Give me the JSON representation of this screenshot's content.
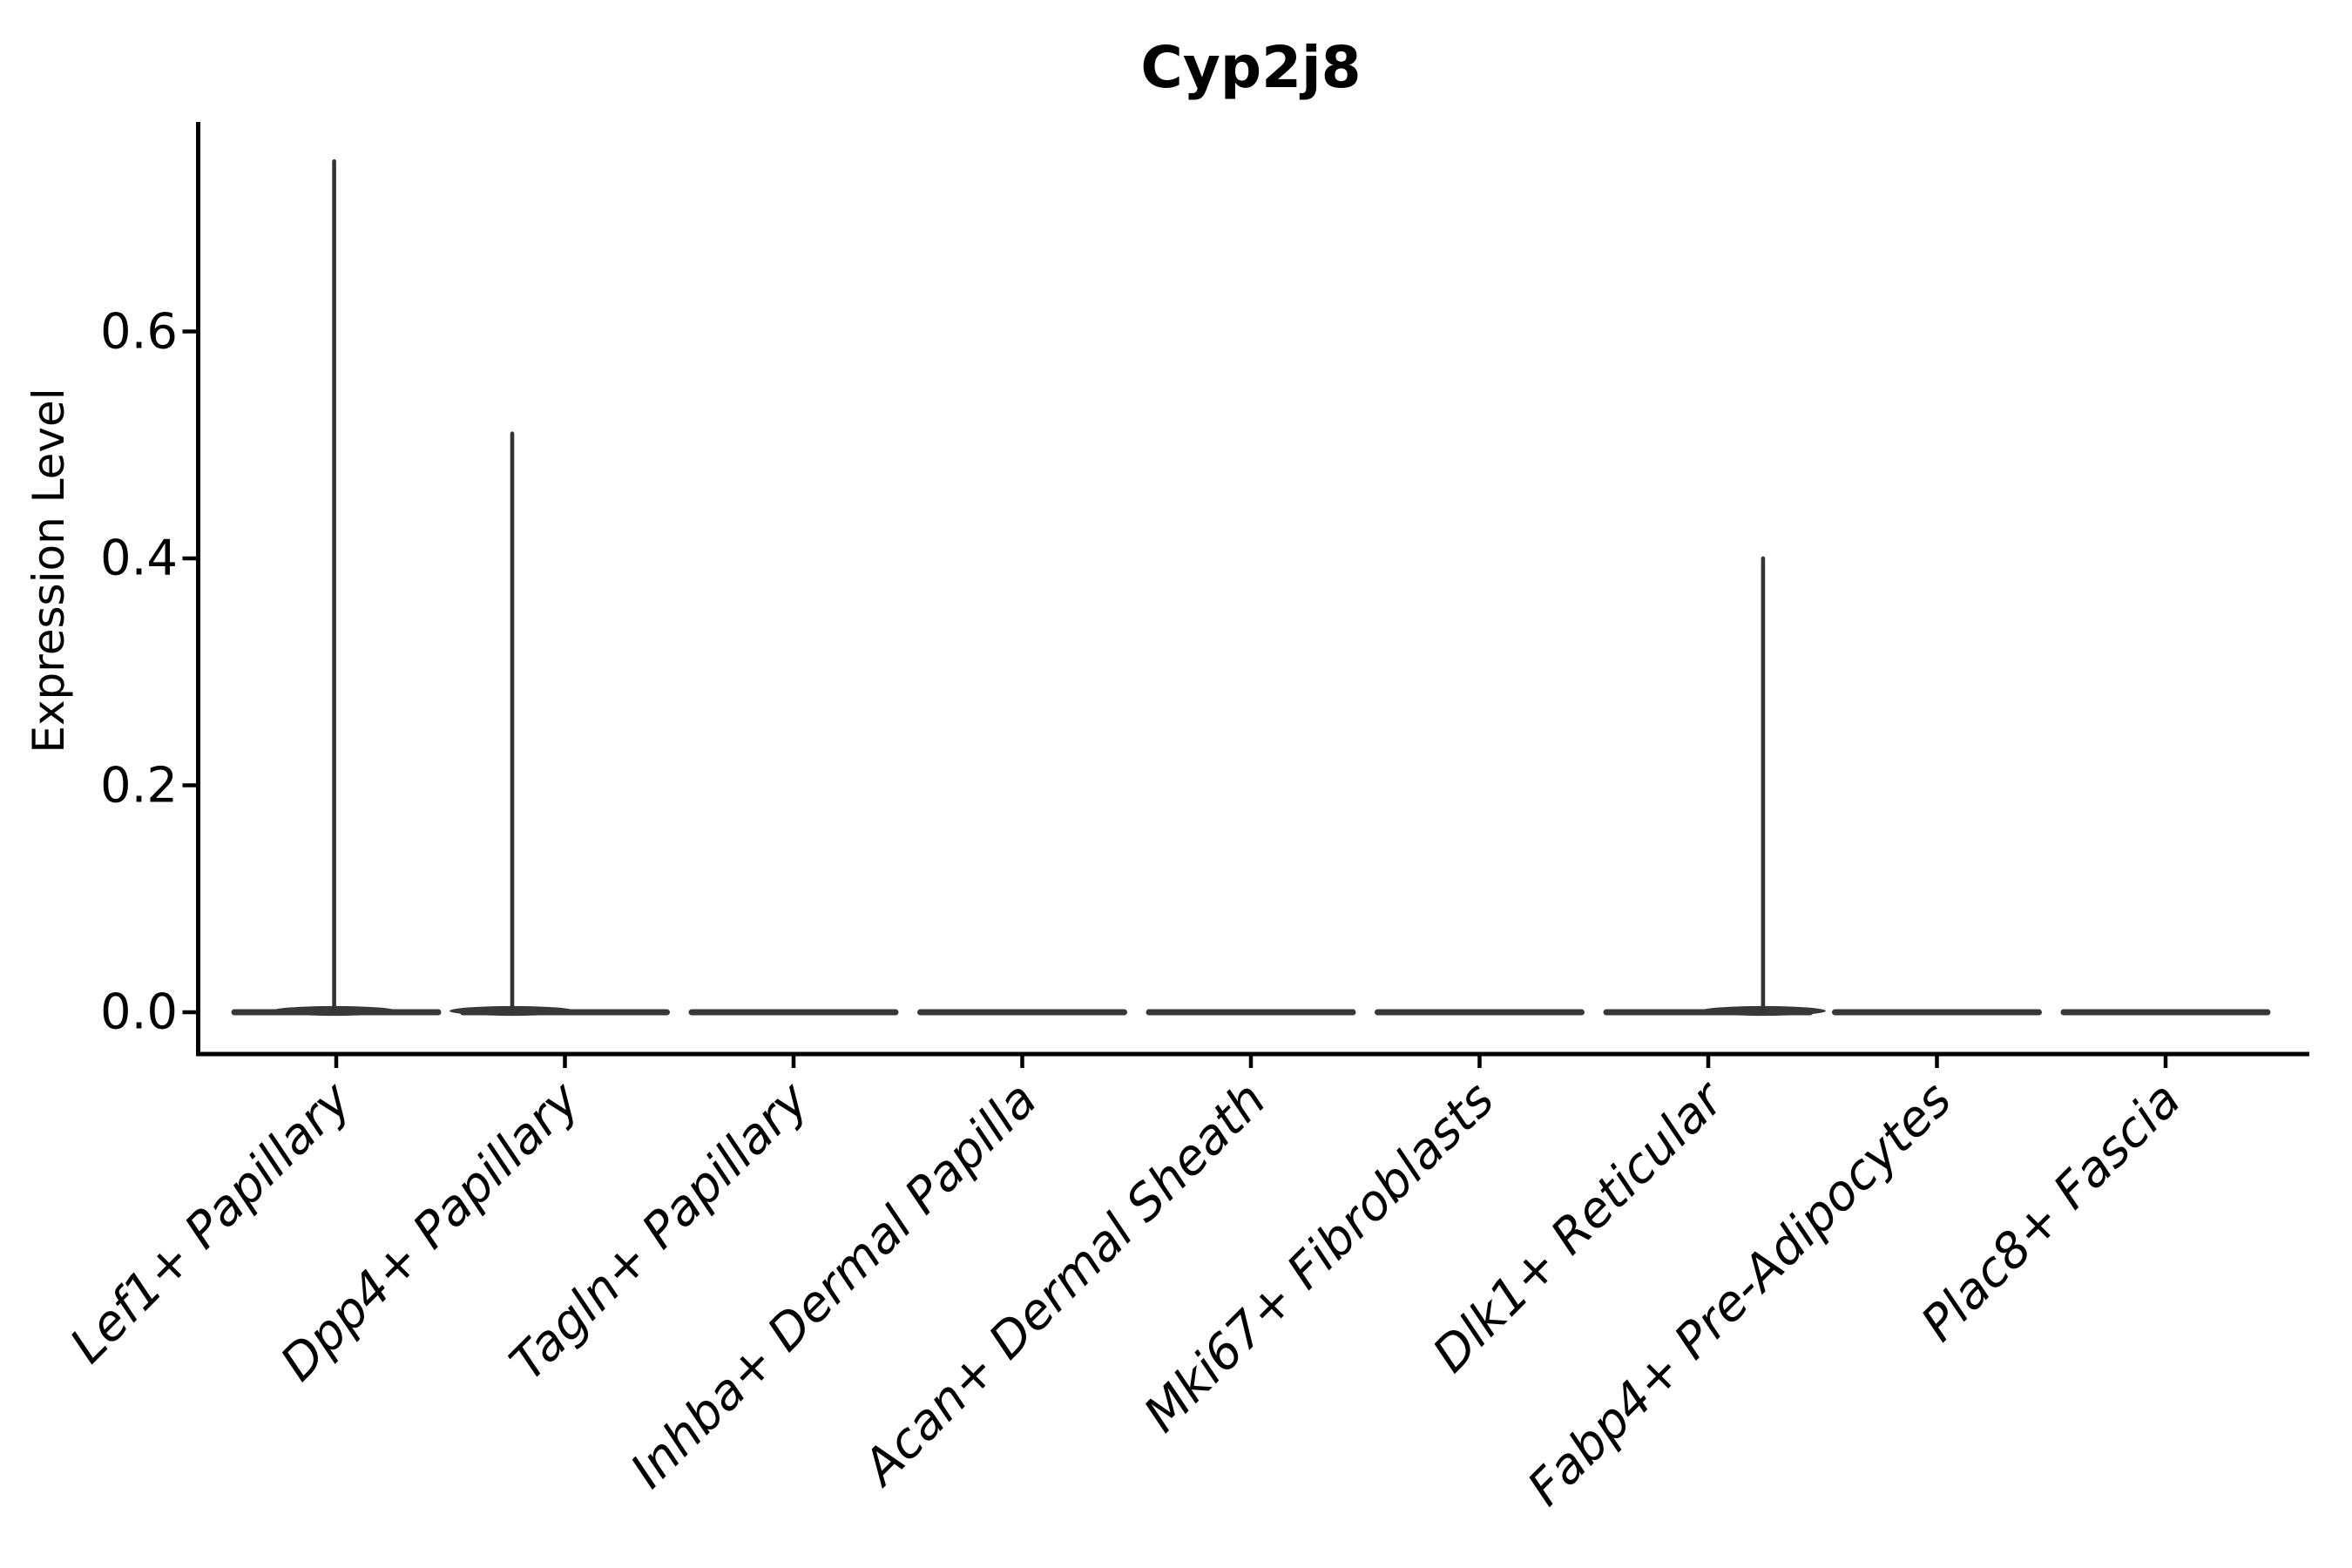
{
  "chart_data": {
    "type": "violin",
    "title": "Cyp2j8",
    "ylabel": "Expression Level",
    "xlabel": "",
    "grid": false,
    "legend": null,
    "yticks": [
      0.0,
      0.2,
      0.4,
      0.6
    ],
    "ytick_labels": [
      "0.0",
      "0.2",
      "0.4",
      "0.6"
    ],
    "ylim": [
      -0.037,
      0.785
    ],
    "categories": [
      "Lef1+ Papillary",
      "Dpp4+ Papillary",
      "Tagln+ Papillary",
      "Inhba+ Dermal Papilla",
      "Acan+ Dermal Sheath",
      "Mki67+ Fibroblasts",
      "Dlk1+ Reticular",
      "Fabp4+ Pre-Adipocytes",
      "Plac8+ Fascia"
    ],
    "violins": [
      {
        "category": "Lef1+ Papillary",
        "bulk_at": 0.0,
        "max_value": 0.75,
        "spike": {
          "value": 0.75,
          "offset_frac": -0.02
        }
      },
      {
        "category": "Dpp4+ Papillary",
        "bulk_at": 0.0,
        "max_value": 0.51,
        "spike": {
          "value": 0.51,
          "offset_frac": -0.5
        }
      },
      {
        "category": "Tagln+ Papillary",
        "bulk_at": 0.0,
        "max_value": 0.0,
        "spike": null
      },
      {
        "category": "Inhba+ Dermal Papilla",
        "bulk_at": 0.0,
        "max_value": 0.0,
        "spike": null
      },
      {
        "category": "Acan+ Dermal Sheath",
        "bulk_at": 0.0,
        "max_value": 0.0,
        "spike": null
      },
      {
        "category": "Mki67+ Fibroblasts",
        "bulk_at": 0.0,
        "max_value": 0.0,
        "spike": null
      },
      {
        "category": "Dlk1+ Reticular",
        "bulk_at": 0.0,
        "max_value": 0.4,
        "spike": {
          "value": 0.4,
          "offset_frac": 0.52
        }
      },
      {
        "category": "Fabp4+ Pre-Adipocytes",
        "bulk_at": 0.0,
        "max_value": 0.0,
        "spike": null
      },
      {
        "category": "Plac8+ Fascia",
        "bulk_at": 0.0,
        "max_value": 0.0,
        "spike": null
      }
    ],
    "colors": {
      "violin_fill": "#383838",
      "spike": "#333333",
      "axis": "#000000",
      "text": "#000000",
      "background": "#ffffff"
    }
  }
}
